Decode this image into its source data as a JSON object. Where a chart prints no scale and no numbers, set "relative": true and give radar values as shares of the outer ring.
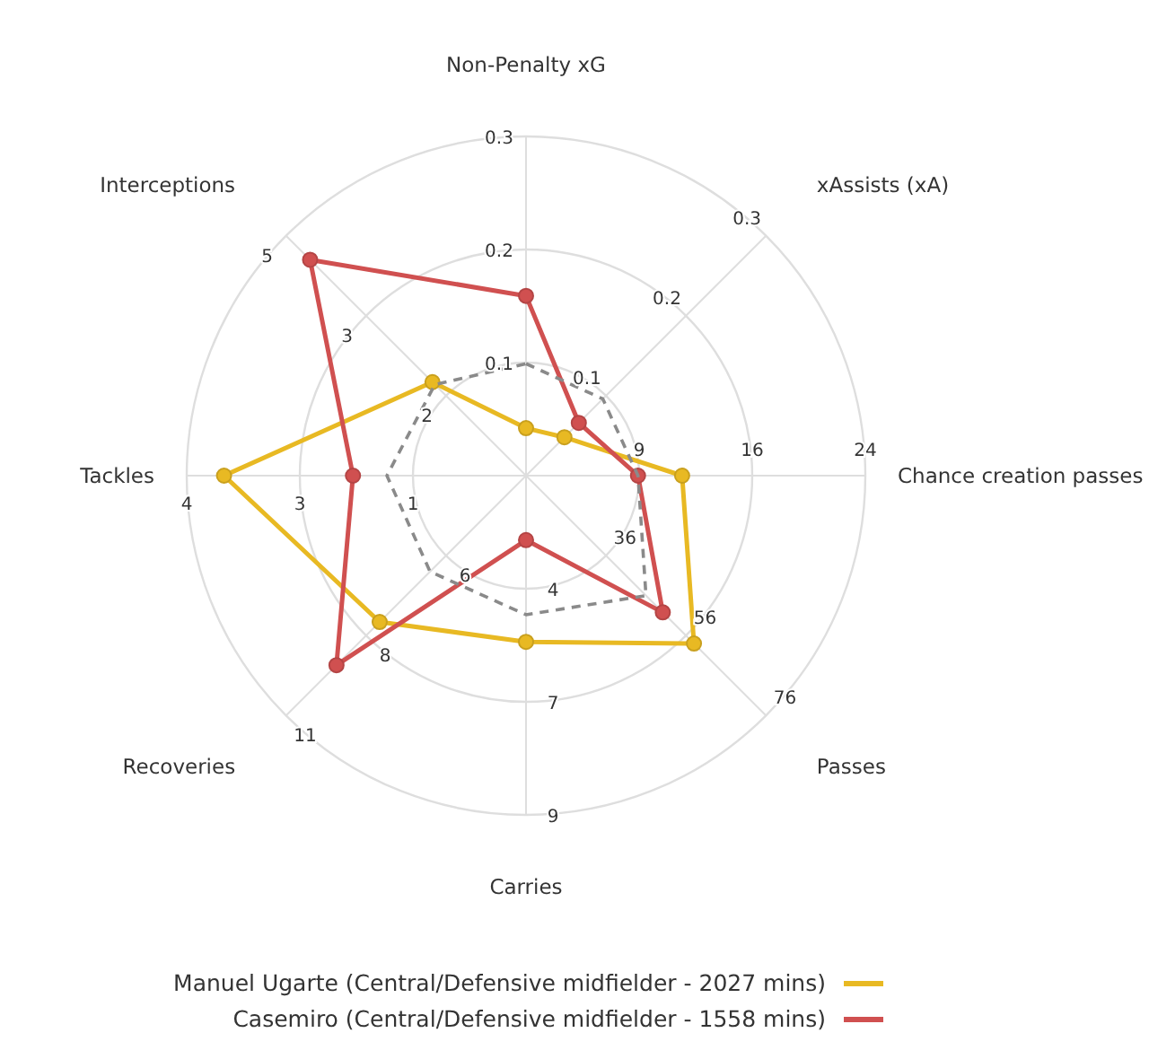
{
  "chart_data": {
    "type": "radar",
    "relative": true,
    "legend": "bottom",
    "marker": "circle",
    "grid": true,
    "categories": [
      "Non-Penalty xG",
      "xAssists (xA)",
      "Chance creation passes",
      "Passes",
      "Carries",
      "Recoveries",
      "Tackles",
      "Interceptions"
    ],
    "series": [
      {
        "name": "Manuel Ugarte (Central/Defensive midfielder - 2027 mins)",
        "color": "#e8b923",
        "values": [
          0.14,
          0.16,
          0.46,
          0.7,
          0.49,
          0.61,
          0.89,
          0.39
        ]
      },
      {
        "name": "Casemiro (Central/Defensive midfielder - 1558 mins)",
        "color": "#d05050",
        "values": [
          0.53,
          0.22,
          0.33,
          0.57,
          0.19,
          0.79,
          0.51,
          0.9
        ]
      },
      {
        "color": "#8a8a8a",
        "line_style": "dashed",
        "marker": "none",
        "values": [
          0.33,
          0.32,
          0.33,
          0.5,
          0.41,
          0.4,
          0.41,
          0.38
        ]
      }
    ],
    "annotations": [
      {
        "text": "0.1",
        "x": "Non-Penalty xG"
      },
      {
        "text": "0.2",
        "x": "Non-Penalty xG"
      },
      {
        "text": "0.3",
        "x": "Non-Penalty xG"
      },
      {
        "text": "0.1",
        "x": "xAssists (xA)"
      },
      {
        "text": "0.2",
        "x": "xAssists (xA)"
      },
      {
        "text": "0.3",
        "x": "xAssists (xA)"
      },
      {
        "text": "9",
        "x": "Chance creation passes"
      },
      {
        "text": "16",
        "x": "Chance creation passes"
      },
      {
        "text": "24",
        "x": "Chance creation passes"
      },
      {
        "text": "36",
        "x": "Passes"
      },
      {
        "text": "56",
        "x": "Passes"
      },
      {
        "text": "76",
        "x": "Passes"
      },
      {
        "text": "4",
        "x": "Carries"
      },
      {
        "text": "7",
        "x": "Carries"
      },
      {
        "text": "9",
        "x": "Carries"
      },
      {
        "text": "6",
        "x": "Recoveries"
      },
      {
        "text": "8",
        "x": "Recoveries"
      },
      {
        "text": "11",
        "x": "Recoveries"
      },
      {
        "text": "1",
        "x": "Tackles"
      },
      {
        "text": "3",
        "x": "Tackles"
      },
      {
        "text": "4",
        "x": "Tackles"
      },
      {
        "text": "2",
        "x": "Interceptions"
      },
      {
        "text": "3",
        "x": "Interceptions"
      },
      {
        "text": "5",
        "x": "Interceptions"
      }
    ]
  }
}
